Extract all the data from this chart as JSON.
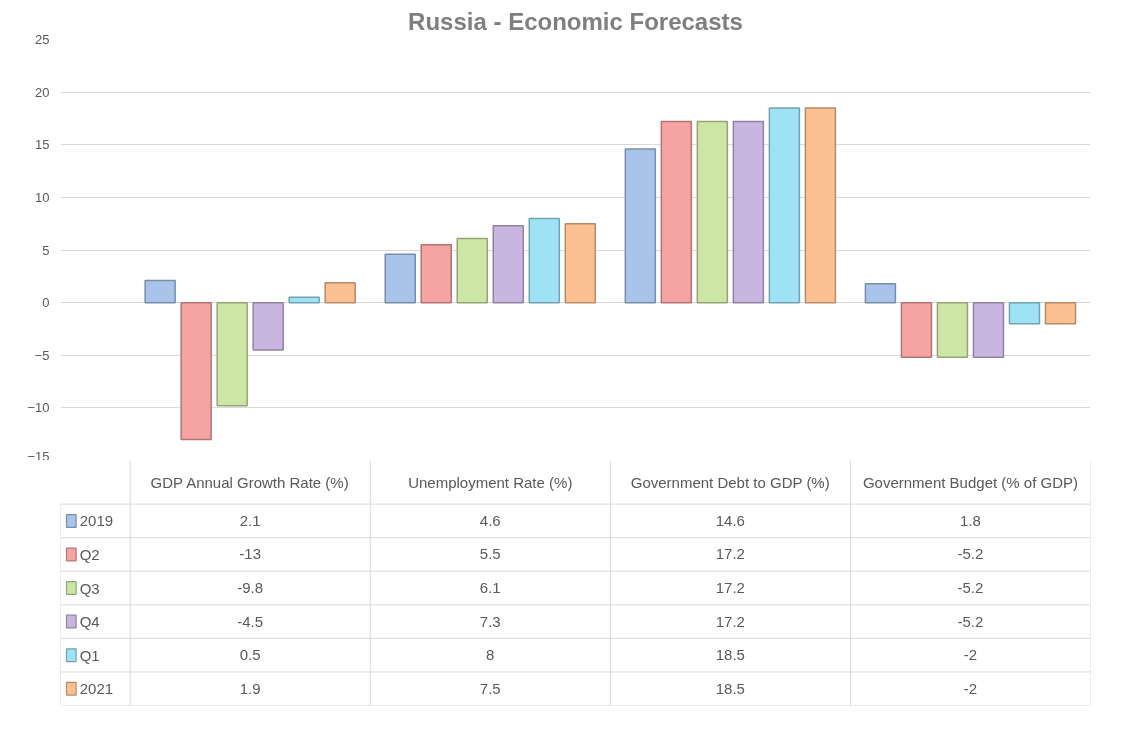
{
  "chart_data": {
    "type": "bar",
    "title": "Russia - Economic Forecasts",
    "categories": [
      "GDP Annual Growth Rate (%)",
      "Unemployment Rate (%)",
      "Government Debt to GDP (%)",
      "Government Budget (% of GDP)"
    ],
    "series": [
      {
        "name": "2019",
        "color": "#a9c4eb",
        "values": [
          2.1,
          4.6,
          14.6,
          1.8
        ]
      },
      {
        "name": "Q2",
        "color": "#f5a3a3",
        "values": [
          -13,
          5.5,
          17.2,
          -5.2
        ]
      },
      {
        "name": "Q3",
        "color": "#cde6a6",
        "values": [
          -9.8,
          6.1,
          17.2,
          -5.2
        ]
      },
      {
        "name": "Q4",
        "color": "#c9b6e0",
        "values": [
          -4.5,
          7.3,
          17.2,
          -5.2
        ]
      },
      {
        "name": "Q1",
        "color": "#9fe2f5",
        "values": [
          0.5,
          8,
          18.5,
          -2
        ]
      },
      {
        "name": "2021",
        "color": "#fcc193",
        "values": [
          1.9,
          7.5,
          18.5,
          -2
        ]
      }
    ],
    "ylim": [
      -15,
      25
    ],
    "yticks": [
      -15,
      -10,
      -5,
      0,
      5,
      10,
      15,
      20,
      25
    ],
    "grid": "y",
    "legend": "bottom",
    "data_labels": true
  }
}
